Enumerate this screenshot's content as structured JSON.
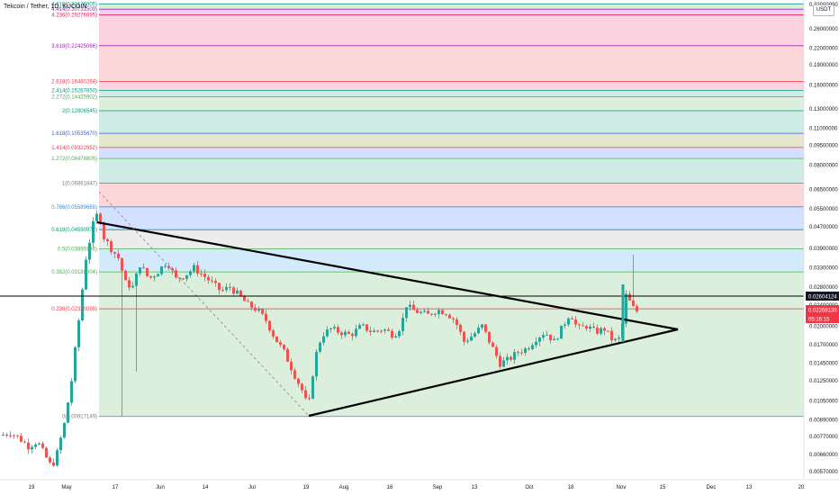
{
  "header": {
    "title": "Tekcoin / Tether, 1D, KUCOIN",
    "currency": "USDT"
  },
  "colors": {
    "up": "#26a69a",
    "down": "#ef5350",
    "triangle": "#000000",
    "hline": "#000000"
  },
  "chart_data": {
    "type": "candlestick",
    "scale": "log",
    "price_axis_ticks": [
      "0.32000000",
      "0.26000000",
      "0.22000000",
      "0.19000000",
      "0.16000000",
      "0.13000000",
      "0.11000000",
      "0.09500000",
      "0.08000000",
      "0.06500000",
      "0.05500000",
      "0.04700000",
      "0.03900000",
      "0.03300000",
      "0.02800000",
      "0.02400000",
      "0.02000000",
      "0.01700000",
      "0.01450000",
      "0.01250000",
      "0.01050000",
      "0.00890000",
      "0.00770000",
      "0.00660000",
      "0.00570000"
    ],
    "time_axis_ticks": [
      "19",
      "May",
      "17",
      "Jun",
      "14",
      "Jul",
      "19",
      "Aug",
      "16",
      "Sep",
      "13",
      "Oct",
      "18",
      "Nov",
      "15",
      "Dec",
      "13",
      "20"
    ],
    "fib_levels": [
      {
        "ratio": "4.618",
        "label": "4.618(0.32176905)",
        "value": 0.32176905,
        "color": "#089981"
      },
      {
        "ratio": "4.414",
        "label": "4.414(0.30731509)",
        "value": 0.30731509,
        "color": "#9c27b0"
      },
      {
        "ratio": "4.236",
        "label": "4.236(0.29276895)",
        "value": 0.29276895,
        "color": "#e91e63"
      },
      {
        "ratio": "3.618",
        "label": "3.618(0.22425066)",
        "value": 0.22425066,
        "color": "#9c27b0"
      },
      {
        "ratio": "2.618",
        "label": "2.618(0.16480268)",
        "value": 0.16480268,
        "color": "#f23645"
      },
      {
        "ratio": "2.414",
        "label": "2.414(0.15267650)",
        "value": 0.1526765,
        "color": "#089981"
      },
      {
        "ratio": "2.272",
        "label": "2.272(0.14425902)",
        "value": 0.14425902,
        "color": "#4caf50"
      },
      {
        "ratio": "2",
        "label": "2(0.12806545)",
        "value": 0.12806545,
        "color": "#089981"
      },
      {
        "ratio": "1.618",
        "label": "1.618(0.10535670)",
        "value": 0.1053567,
        "color": "#2962ff"
      },
      {
        "ratio": "1.414",
        "label": "1.414(0.09322952)",
        "value": 0.09322952,
        "color": "#f23645"
      },
      {
        "ratio": "1.272",
        "label": "1.272(0.08478805)",
        "value": 0.08478805,
        "color": "#4caf50"
      },
      {
        "ratio": "1",
        "label": "1(0.06861847)",
        "value": 0.06861847,
        "color": "#787b86"
      },
      {
        "ratio": "0.786",
        "label": "0.786(0.05589668)",
        "value": 0.05589668,
        "color": "#2196f3"
      },
      {
        "ratio": "0.618",
        "label": "0.618(0.04590972)",
        "value": 0.04590972,
        "color": "#089981"
      },
      {
        "ratio": "0.5",
        "label": "0.5(0.03890136)",
        "value": 0.03890136,
        "color": "#4caf50"
      },
      {
        "ratio": "0.382",
        "label": "0.382(0.03188804)",
        "value": 0.03188804,
        "color": "#4caf50"
      },
      {
        "ratio": "0.236",
        "label": "0.236(0.02320098)",
        "value": 0.02320098,
        "color": "#f23645"
      },
      {
        "ratio": "0",
        "label": "0(0.00917149)",
        "value": 0.00917149,
        "color": "#787b86"
      }
    ],
    "price_labels": [
      {
        "text": "0.02604124",
        "bg": "#131722",
        "fg": "#ffffff"
      },
      {
        "text": "0.02268130",
        "bg": "#f23645",
        "fg": "#ffffff"
      },
      {
        "text": "05:16:15",
        "bg": "#f23645",
        "fg": "#ffffff"
      }
    ]
  }
}
